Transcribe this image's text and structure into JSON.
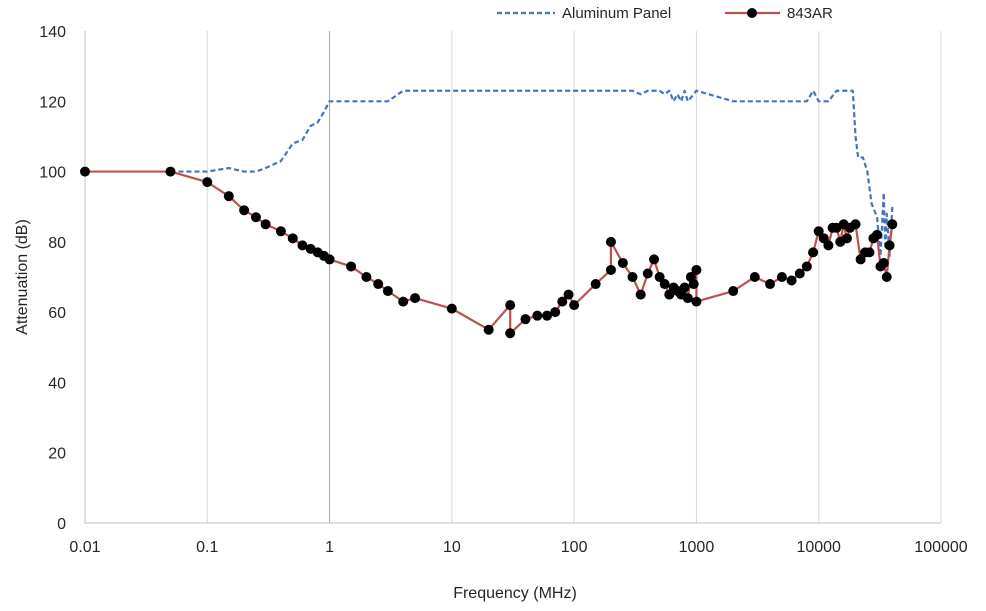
{
  "chart_data": {
    "type": "line",
    "title": "",
    "xlabel": "Frequency (MHz)",
    "ylabel": "Attenuation (dB)",
    "x_scale": "log",
    "xlim": [
      0.01,
      100000
    ],
    "ylim": [
      0,
      140
    ],
    "x_ticks": [
      "0.01",
      "0.1",
      "1",
      "10",
      "100",
      "1000",
      "10000",
      "100000"
    ],
    "y_ticks": [
      "0",
      "20",
      "40",
      "60",
      "80",
      "100",
      "120",
      "140"
    ],
    "grid": "vertical",
    "legend_position": "top-right",
    "series": [
      {
        "name": "Aluminum Panel",
        "color": "#4472C4",
        "style": "dashed",
        "marker": "none",
        "points": [
          [
            0.05,
            100
          ],
          [
            0.1,
            100
          ],
          [
            0.15,
            101
          ],
          [
            0.2,
            100
          ],
          [
            0.25,
            100
          ],
          [
            0.3,
            101
          ],
          [
            0.4,
            103
          ],
          [
            0.5,
            108
          ],
          [
            0.6,
            109
          ],
          [
            0.7,
            113
          ],
          [
            0.8,
            114
          ],
          [
            0.9,
            117
          ],
          [
            1,
            120
          ],
          [
            2,
            120
          ],
          [
            3,
            120
          ],
          [
            4,
            123
          ],
          [
            10,
            123
          ],
          [
            100,
            123
          ],
          [
            300,
            123
          ],
          [
            350,
            122
          ],
          [
            400,
            123
          ],
          [
            500,
            123
          ],
          [
            550,
            122
          ],
          [
            600,
            123
          ],
          [
            650,
            120
          ],
          [
            700,
            122
          ],
          [
            750,
            120
          ],
          [
            800,
            123
          ],
          [
            850,
            120
          ],
          [
            900,
            121
          ],
          [
            1000,
            123
          ],
          [
            2000,
            120
          ],
          [
            5000,
            120
          ],
          [
            8000,
            120
          ],
          [
            9000,
            123
          ],
          [
            10000,
            120
          ],
          [
            11000,
            120
          ],
          [
            12000,
            120
          ],
          [
            14000,
            123
          ],
          [
            16000,
            123
          ],
          [
            19000,
            123
          ],
          [
            20000,
            110
          ],
          [
            21000,
            104
          ],
          [
            23000,
            104
          ],
          [
            25000,
            100
          ],
          [
            27000,
            91
          ],
          [
            30000,
            87
          ],
          [
            32000,
            76
          ],
          [
            34000,
            94
          ],
          [
            35000,
            78
          ],
          [
            36000,
            88
          ],
          [
            38000,
            76
          ],
          [
            40000,
            90
          ]
        ]
      },
      {
        "name": "843AR",
        "color": "#C0504D",
        "style": "solid",
        "marker": "circle",
        "marker_color": "#000000",
        "points": [
          [
            0.01,
            100
          ],
          [
            0.05,
            100
          ],
          [
            0.1,
            97
          ],
          [
            0.15,
            93
          ],
          [
            0.2,
            89
          ],
          [
            0.25,
            87
          ],
          [
            0.3,
            85
          ],
          [
            0.4,
            83
          ],
          [
            0.5,
            81
          ],
          [
            0.6,
            79
          ],
          [
            0.7,
            78
          ],
          [
            0.8,
            77
          ],
          [
            0.9,
            76
          ],
          [
            1,
            75
          ],
          [
            1.5,
            73
          ],
          [
            2,
            70
          ],
          [
            2.5,
            68
          ],
          [
            3,
            66
          ],
          [
            4,
            63
          ],
          [
            5,
            64
          ],
          [
            10,
            61
          ],
          [
            20,
            55
          ],
          [
            30,
            62
          ],
          [
            30,
            54
          ],
          [
            40,
            58
          ],
          [
            50,
            59
          ],
          [
            60,
            59
          ],
          [
            70,
            60
          ],
          [
            80,
            63
          ],
          [
            90,
            65
          ],
          [
            100,
            62
          ],
          [
            150,
            68
          ],
          [
            200,
            72
          ],
          [
            200,
            80
          ],
          [
            250,
            74
          ],
          [
            300,
            70
          ],
          [
            350,
            65
          ],
          [
            400,
            71
          ],
          [
            450,
            75
          ],
          [
            500,
            70
          ],
          [
            550,
            68
          ],
          [
            600,
            65
          ],
          [
            650,
            67
          ],
          [
            700,
            66
          ],
          [
            750,
            65
          ],
          [
            800,
            67
          ],
          [
            850,
            64
          ],
          [
            900,
            70
          ],
          [
            950,
            68
          ],
          [
            1000,
            72
          ],
          [
            1000,
            63
          ],
          [
            2000,
            66
          ],
          [
            3000,
            70
          ],
          [
            4000,
            68
          ],
          [
            5000,
            70
          ],
          [
            6000,
            69
          ],
          [
            7000,
            71
          ],
          [
            8000,
            73
          ],
          [
            9000,
            77
          ],
          [
            10000,
            83
          ],
          [
            11000,
            81
          ],
          [
            12000,
            79
          ],
          [
            13000,
            84
          ],
          [
            14000,
            84
          ],
          [
            15000,
            80
          ],
          [
            16000,
            85
          ],
          [
            17000,
            81
          ],
          [
            18000,
            84
          ],
          [
            20000,
            85
          ],
          [
            22000,
            75
          ],
          [
            24000,
            77
          ],
          [
            26000,
            77
          ],
          [
            28000,
            81
          ],
          [
            30000,
            82
          ],
          [
            32000,
            73
          ],
          [
            34000,
            74
          ],
          [
            36000,
            70
          ],
          [
            38000,
            79
          ],
          [
            40000,
            85
          ]
        ]
      }
    ]
  }
}
